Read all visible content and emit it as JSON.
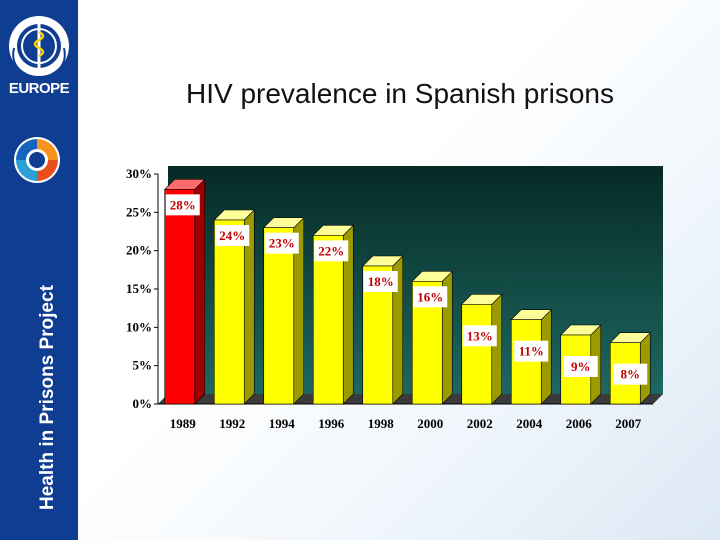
{
  "sidebar": {
    "region_label": "EUROPE",
    "project_label": "Health in Prisons Project",
    "background": "#0f3d91"
  },
  "slide": {
    "title": "HIV prevalence in Spanish prisons"
  },
  "chart_data": {
    "type": "bar",
    "title": "HIV prevalence in Spanish prisons",
    "categories": [
      "1989",
      "1992",
      "1994",
      "1996",
      "1998",
      "2000",
      "2002",
      "2004",
      "2006",
      "2007"
    ],
    "values": [
      28,
      24,
      23,
      22,
      18,
      16,
      13,
      11,
      9,
      8
    ],
    "data_labels": [
      "28%",
      "24%",
      "23%",
      "22%",
      "18%",
      "16%",
      "13%",
      "11%",
      "9%",
      "8%"
    ],
    "y_ticks": [
      "0%",
      "5%",
      "10%",
      "15%",
      "20%",
      "25%",
      "30%"
    ],
    "ylim": [
      0,
      30
    ],
    "unit": "%",
    "xlabel": "",
    "ylabel": "",
    "legend": "none",
    "grid": false,
    "colors": {
      "highlight_bar": "#ff0000",
      "bar": "#ffff00",
      "plot_background": "#0b4a44",
      "label_color": "#c00000"
    }
  }
}
